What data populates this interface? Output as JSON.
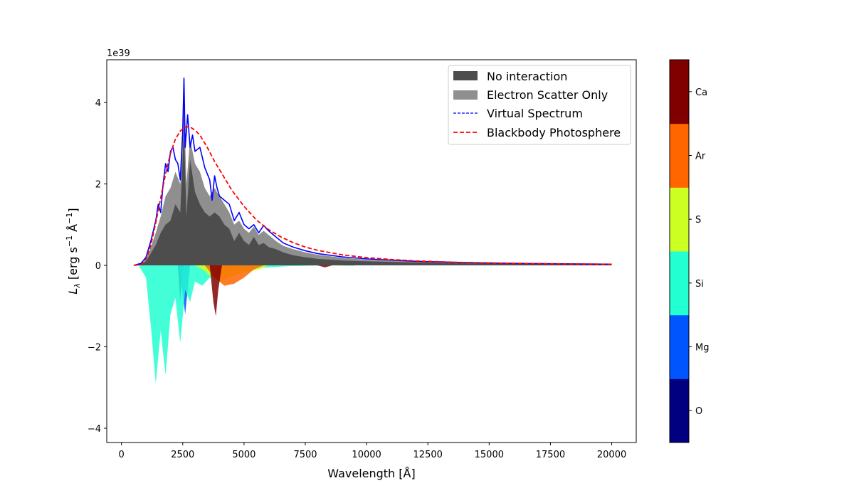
{
  "chart_data": {
    "type": "area",
    "xlabel": "Wavelength [Å]",
    "ylabel": "L_λ [erg s^-1 Å^-1]",
    "ylabel_parts": {
      "main": "L",
      "sub": "λ",
      "bracket_open": " [erg s",
      "exp1": "−1",
      "mid": " Å",
      "exp2": "−1",
      "bracket_close": "]"
    },
    "y_offset_label": "1e39",
    "xlim": [
      -600,
      21000
    ],
    "ylim": [
      -4.35,
      5.05
    ],
    "x_ticks": [
      0,
      2500,
      5000,
      7500,
      10000,
      12500,
      15000,
      17500,
      20000
    ],
    "x_tick_labels": [
      "0",
      "2500",
      "5000",
      "7500",
      "10000",
      "12500",
      "15000",
      "17500",
      "20000"
    ],
    "y_ticks": [
      -4,
      -2,
      0,
      2,
      4
    ],
    "y_tick_labels": [
      "−4",
      "−2",
      "0",
      "2",
      "4"
    ],
    "legend_position": "top-right",
    "series": [
      {
        "name": "No interaction",
        "kind": "area",
        "color": "#4d4d4d",
        "x": [
          500,
          800,
          1000,
          1200,
          1400,
          1600,
          1800,
          2000,
          2200,
          2400,
          2550,
          2650,
          2800,
          3000,
          3200,
          3400,
          3600,
          3800,
          4000,
          4200,
          4400,
          4600,
          4800,
          5000,
          5200,
          5400,
          5600,
          5800,
          6000,
          6300,
          6600,
          7000,
          7500,
          8000,
          9000,
          10000,
          12000,
          14000,
          16000,
          18000,
          20000
        ],
        "y": [
          0,
          0.03,
          0.1,
          0.3,
          0.5,
          0.8,
          1.0,
          1.1,
          1.5,
          1.3,
          3.4,
          1.2,
          2.6,
          1.8,
          1.5,
          1.3,
          1.2,
          1.3,
          1.2,
          1.0,
          0.9,
          0.6,
          0.8,
          0.6,
          0.5,
          0.7,
          0.5,
          0.55,
          0.45,
          0.4,
          0.32,
          0.25,
          0.2,
          0.16,
          0.12,
          0.1,
          0.07,
          0.05,
          0.04,
          0.03,
          0.02
        ]
      },
      {
        "name": "Electron Scatter Only",
        "kind": "area",
        "color": "#8f8f8f",
        "x": [
          500,
          800,
          1000,
          1200,
          1400,
          1600,
          1800,
          2000,
          2200,
          2400,
          2550,
          2650,
          2800,
          3000,
          3200,
          3400,
          3600,
          3800,
          4000,
          4200,
          4400,
          4600,
          4800,
          5000,
          5200,
          5400,
          5600,
          5800,
          6000,
          6300,
          6600,
          7000,
          7500,
          8000,
          9000,
          10000,
          12000,
          14000,
          16000,
          18000,
          20000
        ],
        "y": [
          0,
          0.04,
          0.15,
          0.45,
          0.8,
          1.2,
          1.7,
          1.9,
          2.3,
          2.0,
          4.1,
          2.0,
          3.1,
          2.5,
          2.3,
          1.9,
          1.7,
          1.9,
          1.7,
          1.5,
          1.3,
          1.0,
          1.1,
          0.9,
          0.8,
          0.95,
          0.75,
          0.85,
          0.75,
          0.6,
          0.48,
          0.4,
          0.32,
          0.26,
          0.19,
          0.14,
          0.09,
          0.06,
          0.05,
          0.04,
          0.03
        ]
      },
      {
        "name": "Virtual Spectrum",
        "kind": "line",
        "color": "#0000ff",
        "x": [
          500,
          800,
          1000,
          1200,
          1400,
          1500,
          1600,
          1700,
          1800,
          1900,
          2000,
          2100,
          2200,
          2300,
          2400,
          2500,
          2550,
          2600,
          2700,
          2800,
          2900,
          3000,
          3200,
          3400,
          3600,
          3700,
          3800,
          3900,
          4000,
          4200,
          4400,
          4600,
          4800,
          5000,
          5200,
          5400,
          5600,
          5800,
          6000,
          6300,
          6600,
          7000,
          7500,
          8000,
          9000,
          10000,
          12000,
          14000,
          16000,
          18000,
          20000
        ],
        "y": [
          0,
          0.05,
          0.2,
          0.6,
          1.1,
          1.5,
          1.3,
          2.0,
          2.5,
          2.3,
          2.8,
          2.9,
          2.6,
          2.5,
          2.1,
          3.3,
          4.6,
          2.9,
          3.7,
          2.9,
          3.2,
          2.8,
          2.9,
          2.4,
          2.1,
          1.6,
          2.2,
          1.9,
          1.7,
          1.6,
          1.5,
          1.1,
          1.3,
          1.0,
          0.9,
          1.0,
          0.8,
          0.98,
          0.85,
          0.7,
          0.55,
          0.45,
          0.36,
          0.29,
          0.21,
          0.16,
          0.1,
          0.07,
          0.05,
          0.04,
          0.03
        ]
      },
      {
        "name": "Blackbody Photosphere",
        "kind": "line",
        "color": "#ff0000",
        "x": [
          500,
          800,
          1000,
          1200,
          1400,
          1600,
          1800,
          2000,
          2200,
          2400,
          2600,
          2800,
          3000,
          3200,
          3500,
          3800,
          4000,
          4500,
          5000,
          5500,
          6000,
          6500,
          7000,
          7500,
          8000,
          9000,
          10000,
          11000,
          12000,
          13000,
          14000,
          15000,
          16000,
          17000,
          18000,
          19000,
          20000
        ],
        "y": [
          0,
          0.02,
          0.15,
          0.5,
          1.05,
          1.65,
          2.25,
          2.75,
          3.1,
          3.3,
          3.4,
          3.4,
          3.32,
          3.2,
          2.9,
          2.55,
          2.35,
          1.85,
          1.45,
          1.12,
          0.88,
          0.7,
          0.56,
          0.45,
          0.37,
          0.26,
          0.19,
          0.145,
          0.11,
          0.09,
          0.07,
          0.06,
          0.05,
          0.042,
          0.036,
          0.031,
          0.027
        ]
      }
    ],
    "element_contributions": [
      {
        "name": "O",
        "color": "#000080",
        "x": [
          2300,
          2400,
          2480,
          2550
        ],
        "y": [
          0,
          -0.9,
          -0.2,
          0
        ]
      },
      {
        "name": "Mg",
        "color": "#0055ff",
        "x": [
          2350,
          2500,
          2600,
          2700,
          2800
        ],
        "y": [
          0,
          -0.7,
          -1.2,
          -0.6,
          0
        ]
      },
      {
        "name": "Si",
        "color": "#22ffd0",
        "x": [
          700,
          1000,
          1200,
          1400,
          1600,
          1800,
          2000,
          2200,
          2400,
          2600,
          2800,
          3000,
          3300,
          3600,
          4000,
          4500,
          5000,
          5500,
          6000,
          6800,
          8500,
          9500
        ],
        "y": [
          0,
          -0.3,
          -1.5,
          -2.9,
          -1.6,
          -2.7,
          -1.2,
          -0.8,
          -1.9,
          -0.6,
          -0.9,
          -0.4,
          -0.5,
          -0.3,
          -0.25,
          -0.15,
          -0.1,
          -0.07,
          -0.05,
          -0.02,
          0,
          -0.01
        ]
      },
      {
        "name": "S",
        "color": "#ccff22",
        "x": [
          3000,
          3300,
          3600,
          4000,
          4400,
          4800,
          5200,
          5600,
          6000
        ],
        "y": [
          0,
          -0.1,
          -0.25,
          -0.4,
          -0.3,
          -0.2,
          -0.15,
          -0.1,
          0
        ]
      },
      {
        "name": "Ar",
        "color": "#ff6600",
        "x": [
          3400,
          3800,
          4200,
          4600,
          5000,
          5400,
          5800
        ],
        "y": [
          0,
          -0.3,
          -0.5,
          -0.45,
          -0.3,
          -0.1,
          0
        ]
      },
      {
        "name": "Ca",
        "color": "#800000",
        "x": [
          3600,
          3750,
          3850,
          3950,
          4100,
          8000,
          8300,
          8600
        ],
        "y": [
          0,
          -0.9,
          -1.25,
          -0.6,
          0,
          0,
          -0.05,
          0
        ]
      }
    ],
    "colorbar": {
      "labels": [
        "O",
        "Mg",
        "Si",
        "S",
        "Ar",
        "Ca"
      ],
      "colors": [
        "#000080",
        "#0055ff",
        "#22ffd0",
        "#ccff22",
        "#ff6600",
        "#800000"
      ]
    }
  }
}
